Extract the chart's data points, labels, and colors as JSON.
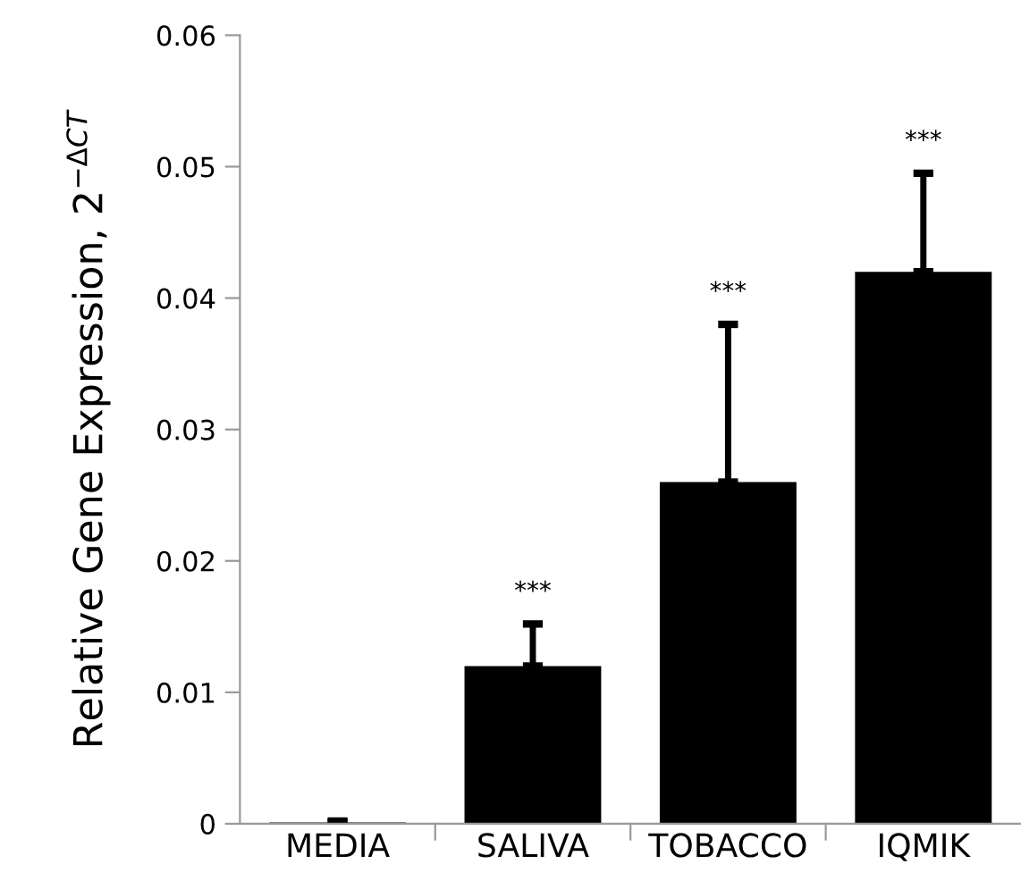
{
  "chart_data": {
    "type": "bar",
    "ylabel": "Relative Gene Expression, 2$^{−ΔCT}$",
    "categories": [
      "MEDIA",
      "SALIVA",
      "TOBACCO",
      "IQMIK"
    ],
    "values": [
      0.0001,
      0.012,
      0.026,
      0.042
    ],
    "color": "#000000",
    "errors": [
      [
        0.0001,
        0.0002
      ],
      [
        0.012,
        0.0152
      ],
      [
        0.026,
        0.038
      ],
      [
        0.042,
        0.0495
      ]
    ],
    "annotations": [
      {
        "text": "***",
        "x": "SALIVA",
        "y": 0.0152
      },
      {
        "text": "***",
        "x": "TOBACCO",
        "y": 0.038
      },
      {
        "text": "***",
        "x": "IQMIK",
        "y": 0.0495
      }
    ],
    "ylim": [
      0,
      0.06
    ],
    "yticks": [
      0,
      0.01,
      0.02,
      0.03,
      0.04,
      0.05,
      0.06
    ],
    "grid": false
  }
}
